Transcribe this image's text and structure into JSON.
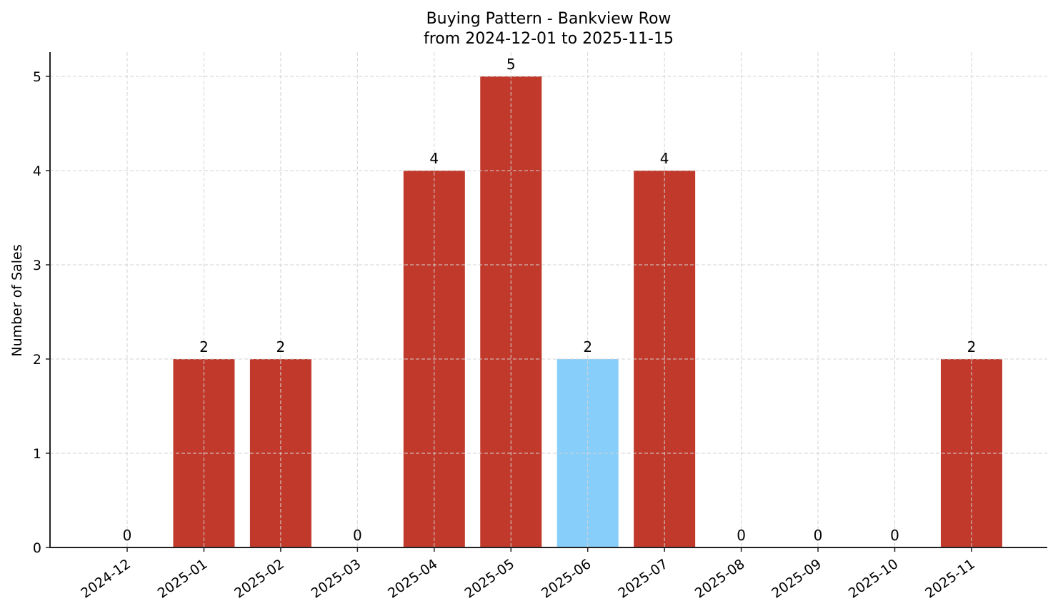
{
  "chart_data": {
    "type": "bar",
    "title": "Buying Pattern - Bankview Row",
    "subtitle": "from 2024-12-01 to 2025-11-15",
    "xlabel": "",
    "ylabel": "Number of Sales",
    "categories": [
      "2024-12",
      "2025-01",
      "2025-02",
      "2025-03",
      "2025-04",
      "2025-05",
      "2025-06",
      "2025-07",
      "2025-08",
      "2025-09",
      "2025-10",
      "2025-11"
    ],
    "values": [
      0,
      2,
      2,
      0,
      4,
      5,
      2,
      4,
      0,
      0,
      0,
      2
    ],
    "bar_colors": [
      "#c0392b",
      "#c0392b",
      "#c0392b",
      "#c0392b",
      "#c0392b",
      "#c0392b",
      "#87cefa",
      "#c0392b",
      "#c0392b",
      "#c0392b",
      "#c0392b",
      "#c0392b"
    ],
    "highlighted_category": "2025-06",
    "ylim": [
      0,
      5.25
    ],
    "yticks": [
      0,
      1,
      2,
      3,
      4,
      5
    ],
    "grid": true,
    "legend": null,
    "data_labels": true
  },
  "colors": {
    "bar_default": "#c0392b",
    "bar_highlight": "#87cefa",
    "grid": "#d3d3d3",
    "axis": "#222222"
  }
}
